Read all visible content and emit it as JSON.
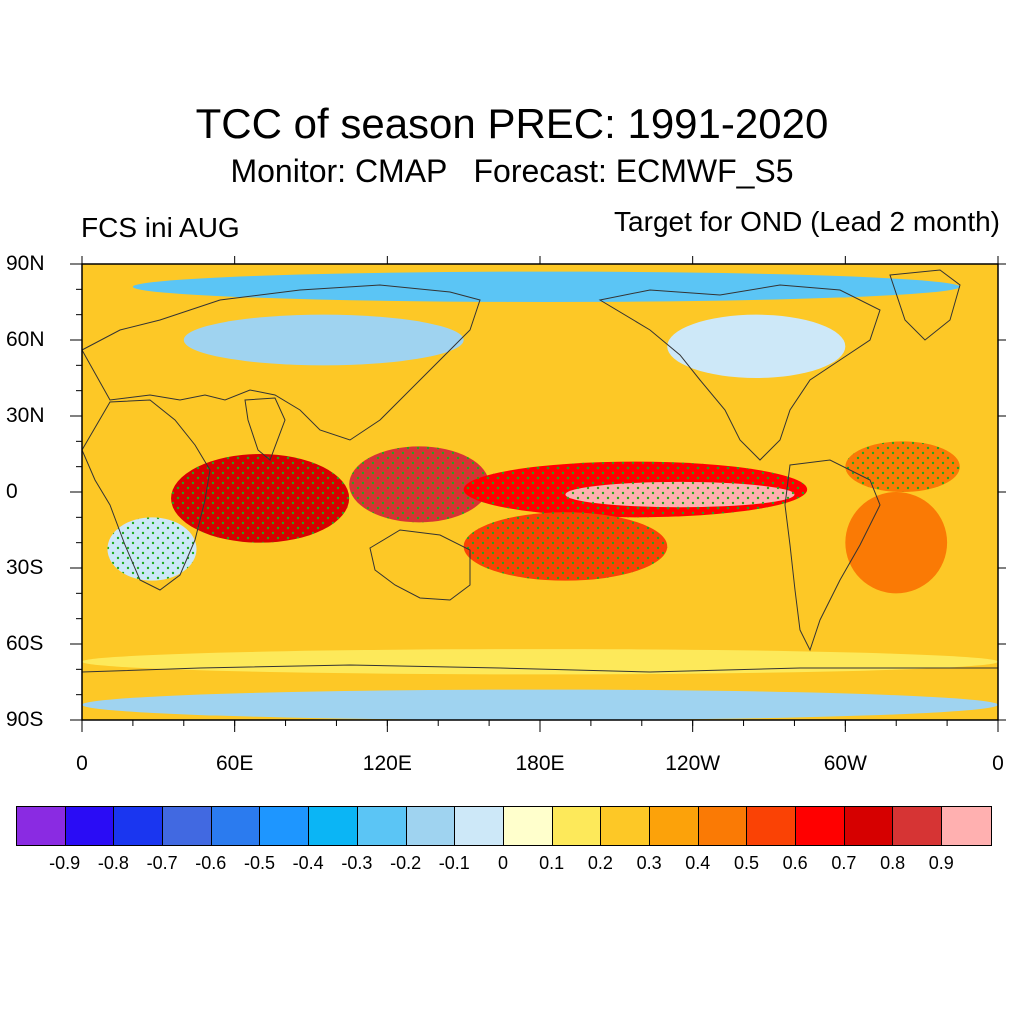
{
  "title": "TCC of season PREC: 1991-2020",
  "subtitle": "Monitor: CMAP   Forecast: ECMWF_S5",
  "left_label": "FCS ini AUG",
  "right_label": "Target for OND (Lead 2 month)",
  "lat_ticks": [
    "90N",
    "60N",
    "30N",
    "0",
    "30S",
    "60S",
    "90S"
  ],
  "lon_ticks": [
    "0",
    "60E",
    "120E",
    "180E",
    "120W",
    "60W",
    "0"
  ],
  "colorbar": {
    "colors": [
      "#8a2be2",
      "#2a0cf5",
      "#1a36f0",
      "#4169e1",
      "#2b7bef",
      "#1e96ff",
      "#0bb5f5",
      "#5bc5f5",
      "#9fd3f0",
      "#cde8f8",
      "#ffffcc",
      "#fde95a",
      "#fdc826",
      "#fca20a",
      "#fa7a05",
      "#fa4205",
      "#ff0000",
      "#d60000",
      "#d63434",
      "#ffb0b0"
    ],
    "labels": [
      "-0.9",
      "-0.8",
      "-0.7",
      "-0.6",
      "-0.5",
      "-0.4",
      "-0.3",
      "-0.2",
      "-0.1",
      "0",
      "0.1",
      "0.2",
      "0.3",
      "0.4",
      "0.5",
      "0.6",
      "0.7",
      "0.8",
      "0.9"
    ]
  },
  "map": {
    "projection": "cylindrical-equidistant",
    "lon_range": [
      0,
      360
    ],
    "lat_range": [
      -90,
      90
    ],
    "background_color": "#fdc826",
    "stipple_color": "#1faa1f",
    "regions": [
      {
        "name": "tropical-indian-ocean-high",
        "color": "#d60000",
        "lon_range": [
          35,
          105
        ],
        "lat_range": [
          -20,
          15
        ]
      },
      {
        "name": "maritime-continent-high",
        "color": "#d63434",
        "lon_range": [
          105,
          160
        ],
        "lat_range": [
          -12,
          18
        ]
      },
      {
        "name": "equatorial-pacific-band",
        "color": "#ff0000",
        "lon_range": [
          150,
          285
        ],
        "lat_range": [
          -10,
          12
        ]
      },
      {
        "name": "equatorial-pacific-core",
        "color": "#ffb0b0",
        "lon_range": [
          190,
          280
        ],
        "lat_range": [
          -6,
          4
        ]
      },
      {
        "name": "south-pacific-convergence",
        "color": "#fa4205",
        "lon_range": [
          150,
          230
        ],
        "lat_range": [
          -35,
          -8
        ]
      },
      {
        "name": "south-america-east",
        "color": "#fa7a05",
        "lon_range": [
          300,
          340
        ],
        "lat_range": [
          -40,
          0
        ]
      },
      {
        "name": "southern-ocean",
        "color": "#fde95a",
        "lon_range": [
          0,
          360
        ],
        "lat_range": [
          -72,
          -62
        ]
      },
      {
        "name": "antarctica",
        "color": "#9fd3f0",
        "lon_range": [
          0,
          360
        ],
        "lat_range": [
          -90,
          -78
        ]
      },
      {
        "name": "arctic",
        "color": "#5bc5f5",
        "lon_range": [
          20,
          345
        ],
        "lat_range": [
          75,
          87
        ]
      },
      {
        "name": "eurasia-north",
        "color": "#9fd3f0",
        "lon_range": [
          40,
          150
        ],
        "lat_range": [
          50,
          70
        ]
      },
      {
        "name": "north-america",
        "color": "#cde8f8",
        "lon_range": [
          230,
          300
        ],
        "lat_range": [
          45,
          70
        ]
      },
      {
        "name": "africa-south",
        "color": "#cde8f8",
        "lon_range": [
          10,
          45
        ],
        "lat_range": [
          -35,
          -10
        ]
      },
      {
        "name": "north-atlantic",
        "color": "#fa7a05",
        "lon_range": [
          300,
          345
        ],
        "lat_range": [
          0,
          20
        ]
      }
    ]
  }
}
